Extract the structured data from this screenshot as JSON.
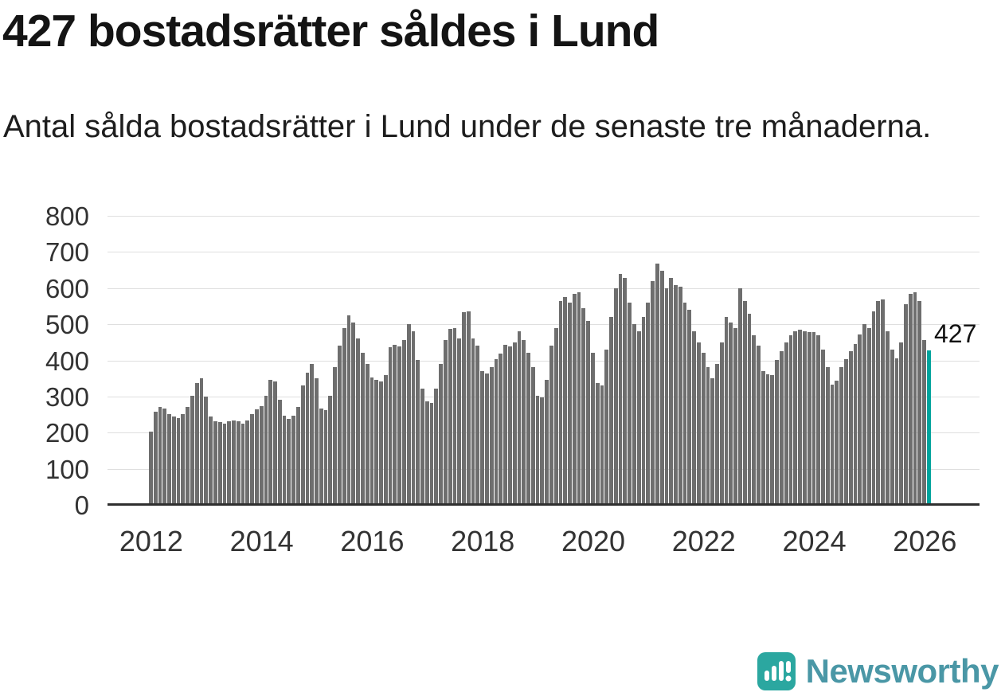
{
  "header": {
    "title": "427 bostadsrätter såldes i Lund",
    "subtitle": "Antal sålda bostadsrätter i Lund under de senaste tre månaderna."
  },
  "chart_data": {
    "type": "bar",
    "title": "427 bostadsrätter såldes i Lund",
    "xlabel": "",
    "ylabel": "",
    "grid": true,
    "ylim": [
      0,
      800
    ],
    "y_ticks": [
      0,
      100,
      200,
      300,
      400,
      500,
      600,
      700,
      800
    ],
    "x_start_year": 2012,
    "x_frequency": "monthly",
    "x_tick_years": [
      2012,
      2014,
      2016,
      2018,
      2020,
      2022,
      2024,
      2026
    ],
    "values": [
      200,
      255,
      270,
      265,
      250,
      242,
      238,
      248,
      268,
      300,
      335,
      350,
      298,
      242,
      230,
      226,
      222,
      228,
      232,
      228,
      222,
      232,
      248,
      262,
      272,
      300,
      345,
      340,
      290,
      245,
      235,
      245,
      270,
      330,
      365,
      388,
      350,
      265,
      260,
      300,
      380,
      440,
      490,
      525,
      505,
      460,
      420,
      390,
      352,
      345,
      340,
      358,
      435,
      442,
      438,
      455,
      500,
      480,
      400,
      320,
      285,
      280,
      320,
      390,
      455,
      487,
      490,
      460,
      533,
      535,
      460,
      440,
      368,
      362,
      380,
      402,
      418,
      442,
      438,
      448,
      480,
      455,
      420,
      380,
      300,
      295,
      345,
      440,
      490,
      565,
      575,
      560,
      585,
      590,
      545,
      510,
      420,
      335,
      330,
      430,
      520,
      600,
      640,
      630,
      560,
      500,
      480,
      520,
      560,
      620,
      670,
      650,
      600,
      628,
      610,
      605,
      560,
      540,
      480,
      450,
      420,
      380,
      350,
      390,
      450,
      520,
      505,
      490,
      600,
      565,
      530,
      470,
      440,
      370,
      360,
      358,
      400,
      425,
      450,
      470,
      480,
      485,
      480,
      478,
      478,
      468,
      430,
      380,
      332,
      342,
      380,
      402,
      425,
      445,
      472,
      500,
      490,
      535,
      565,
      570,
      480,
      430,
      405,
      450,
      555,
      585,
      590,
      565,
      455,
      427
    ],
    "highlight_last_value": 427,
    "annotation": "427",
    "bar_color": "#6e6e6e",
    "accent_color": "#00a49d"
  },
  "branding": {
    "logo_text": "Newsworthy",
    "logo_icon": "bar-chart-exclamation-icon",
    "icon_color": "#2ba7a0",
    "text_color": "#4a97a6"
  }
}
